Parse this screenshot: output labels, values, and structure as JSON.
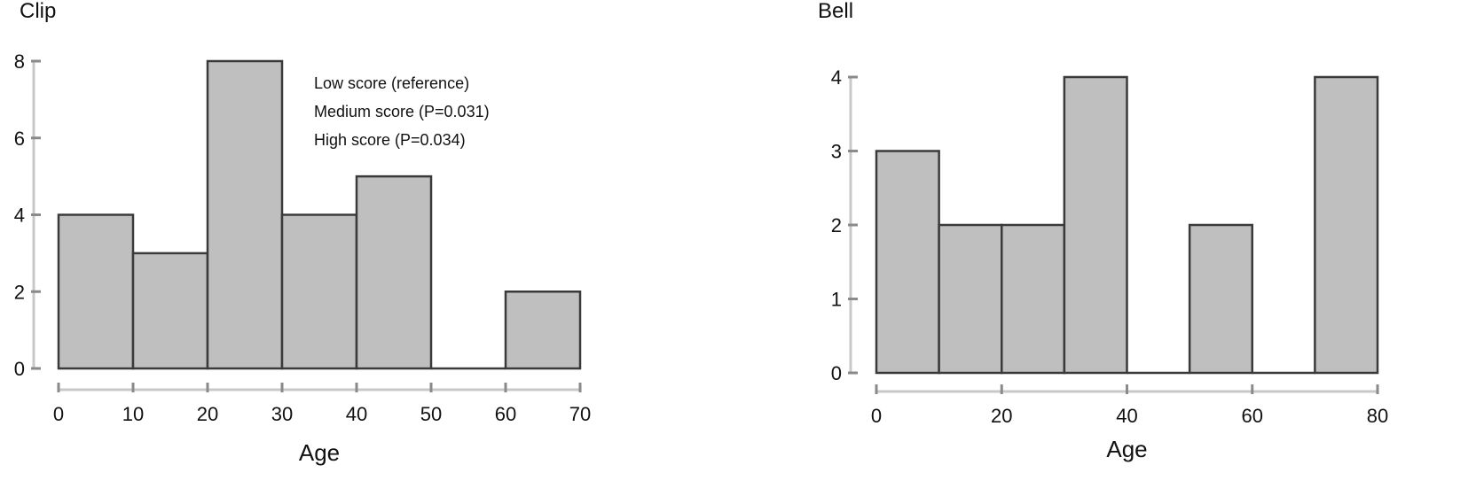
{
  "chart_data": [
    {
      "type": "bar",
      "title": "Clip",
      "xlabel": "Age",
      "ylabel": "",
      "bins": [
        [
          0,
          10
        ],
        [
          10,
          20
        ],
        [
          20,
          30
        ],
        [
          30,
          40
        ],
        [
          40,
          50
        ],
        [
          50,
          60
        ],
        [
          60,
          70
        ]
      ],
      "values": [
        4,
        3,
        8,
        4,
        5,
        0,
        2
      ],
      "xlim": [
        0,
        70
      ],
      "ylim": [
        0,
        8
      ],
      "xticks": [
        0,
        10,
        20,
        30,
        40,
        50,
        60,
        70
      ],
      "yticks": [
        0,
        2,
        4,
        6,
        8
      ],
      "annotations": [
        "Low score (reference)",
        "Medium score (P=0.031)",
        "High score (P=0.034)"
      ],
      "grid": false
    },
    {
      "type": "bar",
      "title": "Bell",
      "xlabel": "Age",
      "ylabel": "",
      "bins": [
        [
          0,
          10
        ],
        [
          10,
          20
        ],
        [
          20,
          30
        ],
        [
          30,
          40
        ],
        [
          40,
          50
        ],
        [
          50,
          60
        ],
        [
          60,
          70
        ],
        [
          70,
          80
        ]
      ],
      "values": [
        3,
        2,
        2,
        4,
        0,
        2,
        0,
        4
      ],
      "xlim": [
        0,
        80
      ],
      "ylim": [
        0,
        4
      ],
      "xticks": [
        0,
        20,
        40,
        60,
        80
      ],
      "yticks": [
        0,
        1,
        2,
        3,
        4
      ],
      "annotations": [],
      "grid": false
    }
  ],
  "colors": {
    "bar_fill": "#bfbfbf",
    "bar_stroke": "#3a3a3a",
    "axis": "#c8c8c8",
    "tick": "#8a8a8a"
  }
}
